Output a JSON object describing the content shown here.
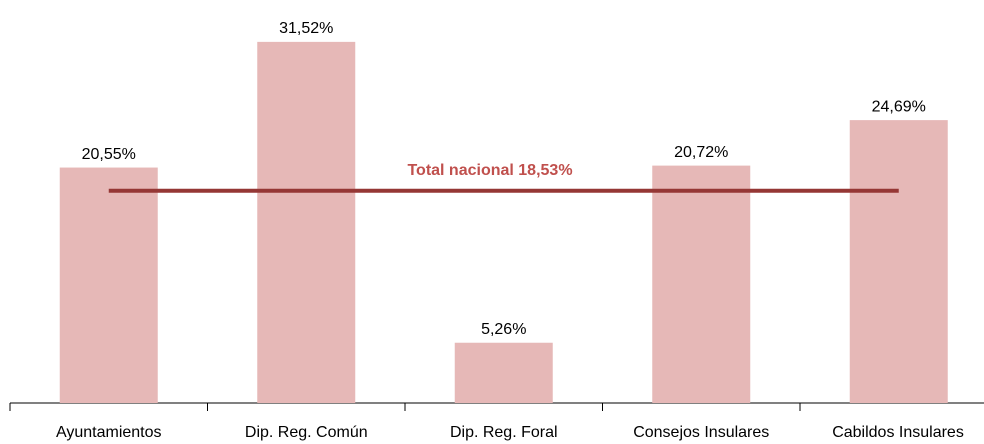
{
  "chart_data": {
    "type": "bar",
    "categories": [
      "Ayuntamientos",
      "Dip. Reg. Común",
      "Dip. Reg. Foral",
      "Consejos Insulares",
      "Cabildos Insulares"
    ],
    "values": [
      20.55,
      31.52,
      5.26,
      20.72,
      24.69
    ],
    "value_labels": [
      "20,55%",
      "31,52%",
      "5,26%",
      "20,72%",
      "24,69%"
    ],
    "color": "#e6b8b7",
    "ylim": [
      0,
      35
    ],
    "reference_line": {
      "value": 18.53,
      "label": "Total nacional 18,53%",
      "color": "#953735"
    }
  }
}
